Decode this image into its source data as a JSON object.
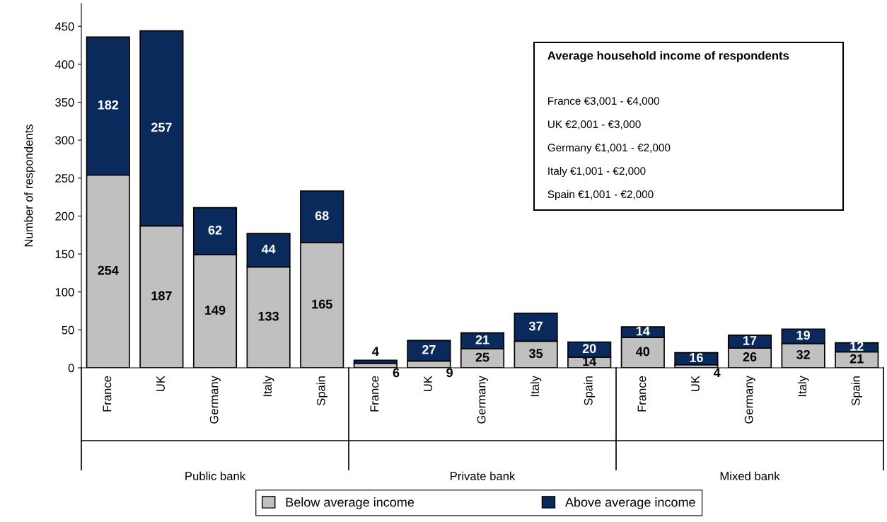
{
  "chart_data": {
    "type": "bar",
    "stacked": true,
    "ylabel": "Number of respondents",
    "categories": [
      "France",
      "UK",
      "Germany",
      "Italy",
      "Spain",
      "France",
      "UK",
      "Germany",
      "Italy",
      "Spain",
      "France",
      "UK",
      "Germany",
      "Italy",
      "Spain"
    ],
    "series": [
      {
        "name": "Below average income",
        "color": "#c0c0c0",
        "values": [
          254,
          187,
          149,
          133,
          165,
          6,
          9,
          25,
          35,
          14,
          40,
          4,
          26,
          32,
          21
        ]
      },
      {
        "name": "Above average income",
        "color": "#0b2a5c",
        "values": [
          182,
          257,
          62,
          44,
          68,
          4,
          27,
          21,
          37,
          20,
          14,
          16,
          17,
          19,
          12
        ]
      }
    ],
    "ylim": [
      0,
      480
    ],
    "yticks": [
      0,
      50,
      100,
      150,
      200,
      250,
      300,
      350,
      400,
      450
    ],
    "data_labels": true,
    "grid": false,
    "legend": "bottom",
    "annotations": [
      "Public bank",
      "Private bank",
      "Mixed bank",
      "Average household income of respondents",
      "France €3,001 - €4,000",
      "UK €2,001 - €3,000",
      "Germany €1,001 - €2,000",
      "Italy €1,001 - €2,000",
      "Spain €1,001 - €2,000"
    ]
  }
}
